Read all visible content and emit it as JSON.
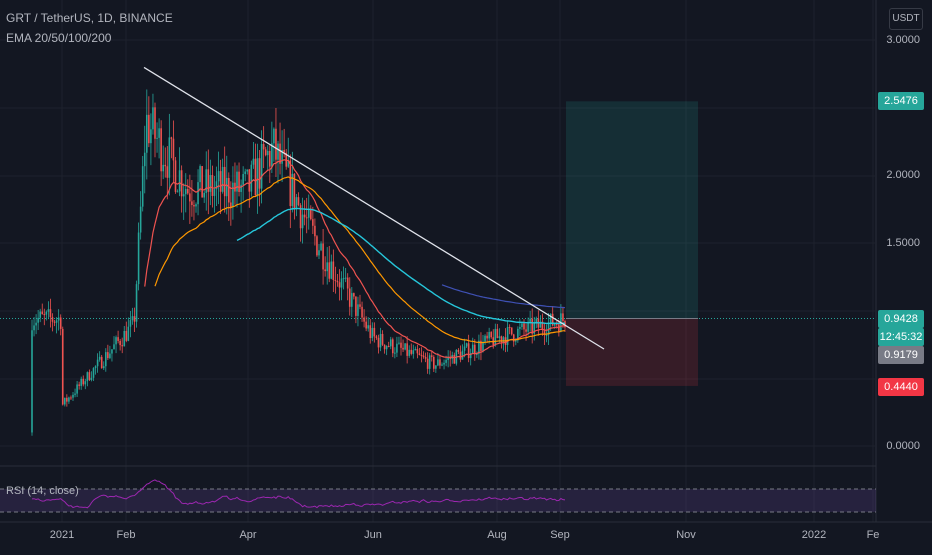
{
  "header": {
    "symbol_line": "GRT / TetherUS, 1D, BINANCE",
    "indicator_line": "EMA 20/50/100/200"
  },
  "currency_button": "USDT",
  "y_axis": {
    "labels": [
      "3.0000",
      "2.0000",
      "1.5000",
      "0.0000"
    ]
  },
  "x_axis": {
    "labels": [
      "2021",
      "Feb",
      "Apr",
      "Jun",
      "Aug",
      "Sep",
      "Nov",
      "2022",
      "Fe"
    ]
  },
  "price_tags": {
    "target": {
      "label": "2.5476",
      "color": "#26a69a"
    },
    "current_price": {
      "label": "0.9428",
      "color": "#26a69a"
    },
    "countdown": {
      "label": "12:45:32",
      "color": "#26a69a"
    },
    "ema": {
      "label": "0.9179",
      "color": "#787b86"
    },
    "stop": {
      "label": "0.4440",
      "color": "#f23645"
    }
  },
  "rsi_panel": {
    "label": "RSI (14, close)",
    "line_color": "#9c27b0"
  },
  "chart_data": {
    "type": "candlestick",
    "up_color": "#26a69a",
    "down_color": "#ef5350",
    "y_ticks": [
      0.0,
      1.5,
      2.0,
      3.0
    ],
    "key_prices": {
      "trendline_start": 2.85,
      "trendline_end": 0.85,
      "target": 2.5476,
      "entry": 0.9428,
      "stop": 0.444,
      "period_high": 2.9,
      "period_low": 0.05
    },
    "close_path": [
      {
        "x": "2021",
        "y": 0.3
      },
      {
        "x": "Feb",
        "y": 0.9
      },
      {
        "x": "Feb",
        "y": 2.4
      },
      {
        "x": "Mar",
        "y": 1.9
      },
      {
        "x": "Apr",
        "y": 1.9
      },
      {
        "x": "Apr",
        "y": 2.2
      },
      {
        "x": "May",
        "y": 1.6
      },
      {
        "x": "Jun",
        "y": 0.8
      },
      {
        "x": "Jul",
        "y": 0.6
      },
      {
        "x": "Aug",
        "y": 0.8
      },
      {
        "x": "Sep",
        "y": 0.94
      }
    ],
    "ema_colors": [
      "#ef5350",
      "#ff9800",
      "#26c6da",
      "#3f51b5"
    ]
  }
}
